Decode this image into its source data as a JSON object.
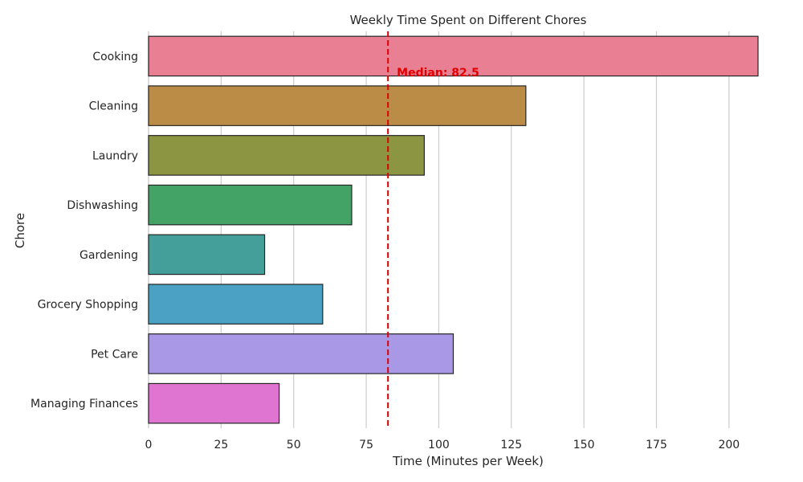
{
  "chart_data": {
    "type": "bar",
    "orientation": "horizontal",
    "title": "Weekly Time Spent on Different Chores",
    "xlabel": "Time (Minutes per Week)",
    "ylabel": "Chore",
    "categories": [
      "Cooking",
      "Cleaning",
      "Laundry",
      "Dishwashing",
      "Gardening",
      "Grocery Shopping",
      "Pet Care",
      "Managing Finances"
    ],
    "values": [
      210,
      130,
      95,
      70,
      40,
      60,
      105,
      45
    ],
    "colors": [
      "#e87f92",
      "#bb8c45",
      "#8c9642",
      "#43a366",
      "#449e99",
      "#4aa1c4",
      "#a898e6",
      "#e075d1"
    ],
    "xlim": [
      0,
      210
    ],
    "xticks": [
      0,
      25,
      50,
      75,
      100,
      125,
      150,
      175,
      200
    ],
    "grid": "vertical",
    "median": {
      "value": 82.5,
      "label": "Median: 82.5",
      "color": "#e00000"
    }
  }
}
